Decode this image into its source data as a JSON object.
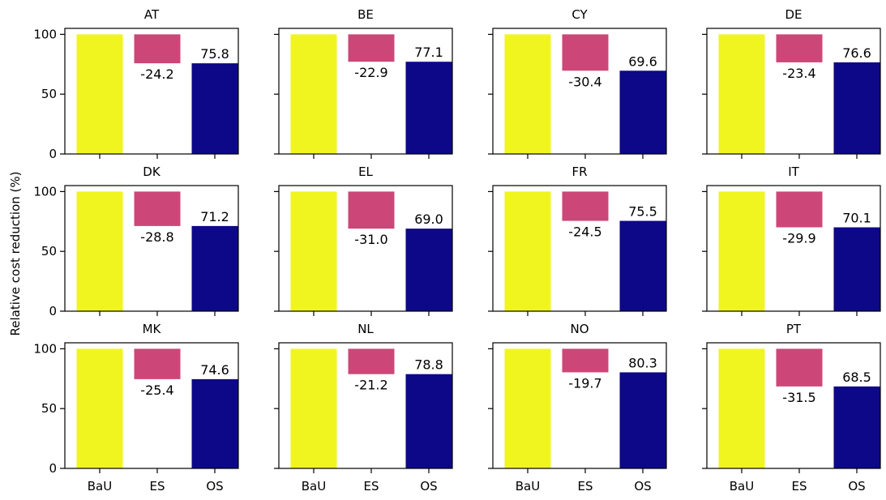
{
  "chart_data": {
    "type": "bar",
    "layout": "grid 3 rows x 4 cols, shared axes",
    "ylabel": "Relative cost reduction (%)",
    "ylim": [
      0,
      105
    ],
    "yticks": [
      "0",
      "50",
      "100"
    ],
    "categories": [
      "BaU",
      "ES",
      "OS"
    ],
    "colors": {
      "BaU": "#f0f520",
      "ES": "#cc4778",
      "OS": "#0d0887"
    },
    "grid": false,
    "panels": [
      {
        "title": "AT",
        "bau": 100,
        "es": -24.2,
        "os": 75.8,
        "es_label": "-24.2",
        "os_label": "75.8"
      },
      {
        "title": "BE",
        "bau": 100,
        "es": -22.9,
        "os": 77.1,
        "es_label": "-22.9",
        "os_label": "77.1"
      },
      {
        "title": "CY",
        "bau": 100,
        "es": -30.4,
        "os": 69.6,
        "es_label": "-30.4",
        "os_label": "69.6"
      },
      {
        "title": "DE",
        "bau": 100,
        "es": -23.4,
        "os": 76.6,
        "es_label": "-23.4",
        "os_label": "76.6"
      },
      {
        "title": "DK",
        "bau": 100,
        "es": -28.8,
        "os": 71.2,
        "es_label": "-28.8",
        "os_label": "71.2"
      },
      {
        "title": "EL",
        "bau": 100,
        "es": -31.0,
        "os": 69.0,
        "es_label": "-31.0",
        "os_label": "69.0"
      },
      {
        "title": "FR",
        "bau": 100,
        "es": -24.5,
        "os": 75.5,
        "es_label": "-24.5",
        "os_label": "75.5"
      },
      {
        "title": "IT",
        "bau": 100,
        "es": -29.9,
        "os": 70.1,
        "es_label": "-29.9",
        "os_label": "70.1"
      },
      {
        "title": "MK",
        "bau": 100,
        "es": -25.4,
        "os": 74.6,
        "es_label": "-25.4",
        "os_label": "74.6"
      },
      {
        "title": "NL",
        "bau": 100,
        "es": -21.2,
        "os": 78.8,
        "es_label": "-21.2",
        "os_label": "78.8"
      },
      {
        "title": "NO",
        "bau": 100,
        "es": -19.7,
        "os": 80.3,
        "es_label": "-19.7",
        "os_label": "80.3"
      },
      {
        "title": "PT",
        "bau": 100,
        "es": -31.5,
        "os": 68.5,
        "es_label": "-31.5",
        "os_label": "68.5"
      }
    ]
  }
}
